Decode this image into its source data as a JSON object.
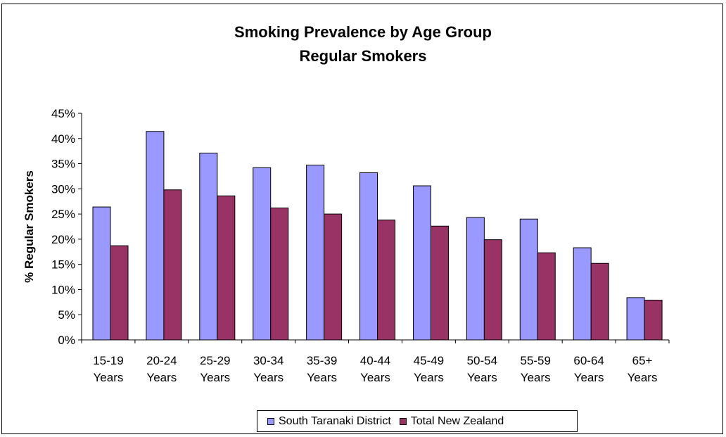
{
  "chart_data": {
    "type": "bar",
    "title": "Smoking Prevalence by Age Group",
    "subtitle": "Regular Smokers",
    "xlabel": "",
    "ylabel": "% Regular Smokers",
    "ylim": [
      0,
      45
    ],
    "y_ticks": [
      "0%",
      "5%",
      "10%",
      "15%",
      "20%",
      "25%",
      "30%",
      "35%",
      "40%",
      "45%"
    ],
    "grid": false,
    "legend_position": "bottom",
    "categories": [
      [
        "15-19",
        "Years"
      ],
      [
        "20-24",
        "Years"
      ],
      [
        "25-29",
        "Years"
      ],
      [
        "30-34",
        "Years"
      ],
      [
        "35-39",
        "Years"
      ],
      [
        "40-44",
        "Years"
      ],
      [
        "45-49",
        "Years"
      ],
      [
        "50-54",
        "Years"
      ],
      [
        "55-59",
        "Years"
      ],
      [
        "60-64",
        "Years"
      ],
      [
        "65+",
        "Years"
      ]
    ],
    "series": [
      {
        "name": "South Taranaki District",
        "color": "#9999ff",
        "values": [
          26.4,
          41.4,
          37.1,
          34.2,
          34.7,
          33.2,
          30.6,
          24.3,
          24.0,
          18.3,
          8.4
        ]
      },
      {
        "name": "Total New Zealand",
        "color": "#993366",
        "values": [
          18.7,
          29.8,
          28.6,
          26.2,
          25.0,
          23.8,
          22.6,
          19.9,
          17.3,
          15.2,
          7.9
        ]
      }
    ]
  }
}
